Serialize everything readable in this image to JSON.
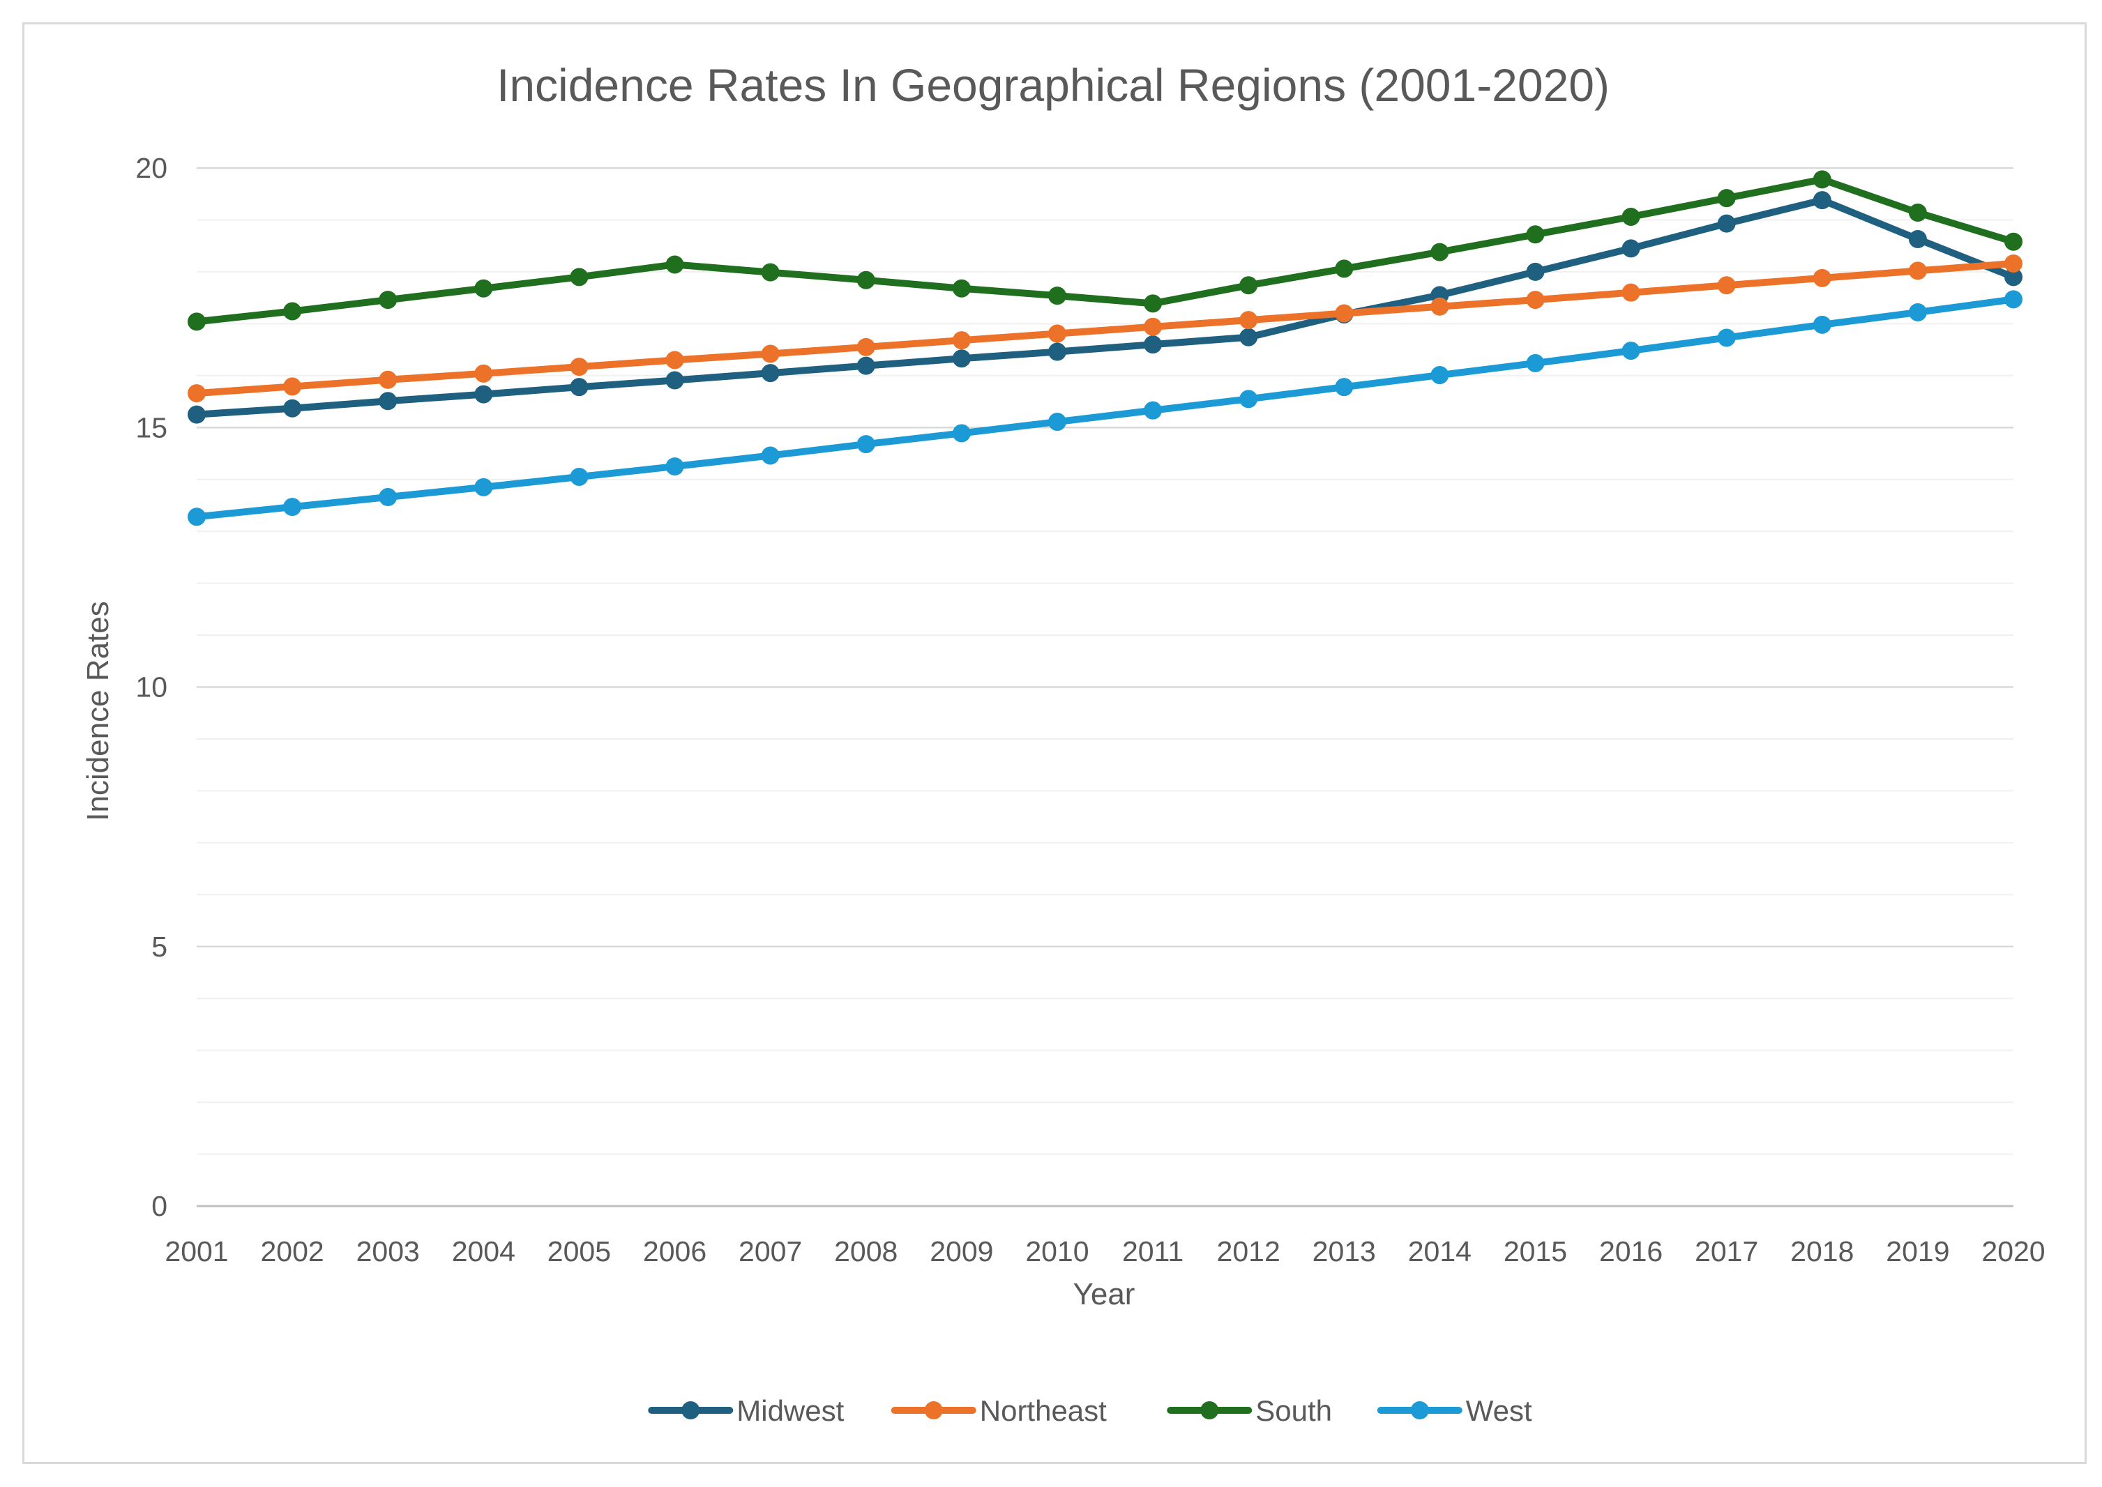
{
  "chart_data": {
    "type": "line",
    "title": "Incidence Rates In Geographical Regions (2001-2020)",
    "xlabel": "Year",
    "ylabel": "Incidence Rates",
    "ylim": [
      0,
      20
    ],
    "yticks": [
      0,
      5,
      10,
      15,
      20
    ],
    "minor_gridline_step": 1,
    "grid": true,
    "legend_position": "bottom",
    "categories": [
      "2001",
      "2002",
      "2003",
      "2004",
      "2005",
      "2006",
      "2007",
      "2008",
      "2009",
      "2010",
      "2011",
      "2012",
      "2013",
      "2014",
      "2015",
      "2016",
      "2017",
      "2018",
      "2019",
      "2020"
    ],
    "series": [
      {
        "name": "Midwest",
        "color": "#1f5f7f",
        "values": [
          15.25,
          15.37,
          15.51,
          15.64,
          15.78,
          15.91,
          16.05,
          16.19,
          16.33,
          16.46,
          16.6,
          16.74,
          17.18,
          17.55,
          18.0,
          18.45,
          18.93,
          19.38,
          18.63,
          17.9
        ]
      },
      {
        "name": "Northeast",
        "color": "#ed7229",
        "values": [
          15.66,
          15.79,
          15.92,
          16.04,
          16.17,
          16.3,
          16.42,
          16.55,
          16.68,
          16.81,
          16.94,
          17.07,
          17.2,
          17.33,
          17.46,
          17.6,
          17.74,
          17.88,
          18.02,
          18.16
        ]
      },
      {
        "name": "South",
        "color": "#1f6f1f",
        "values": [
          17.04,
          17.24,
          17.46,
          17.68,
          17.9,
          18.14,
          17.99,
          17.84,
          17.68,
          17.54,
          17.39,
          17.74,
          18.06,
          18.38,
          18.72,
          19.06,
          19.42,
          19.78,
          19.14,
          18.58
        ]
      },
      {
        "name": "West",
        "color": "#1b9ad6",
        "values": [
          13.28,
          13.47,
          13.66,
          13.85,
          14.05,
          14.25,
          14.46,
          14.68,
          14.89,
          15.11,
          15.33,
          15.55,
          15.78,
          16.01,
          16.24,
          16.48,
          16.73,
          16.98,
          17.22,
          17.47
        ]
      }
    ]
  }
}
